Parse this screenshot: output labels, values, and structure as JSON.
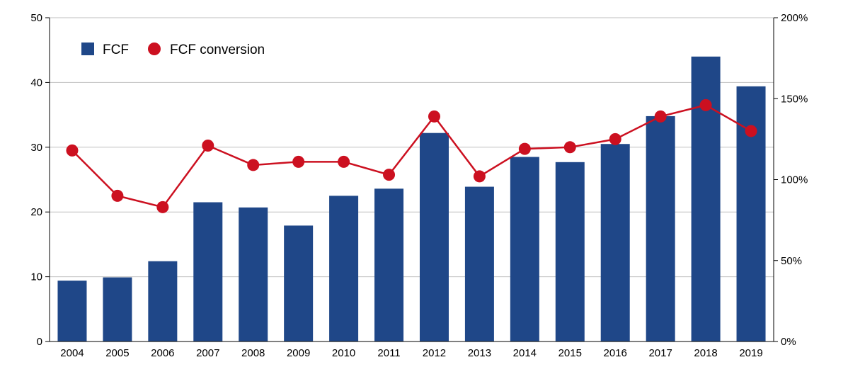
{
  "chart_data": {
    "type": "bar",
    "categories": [
      "2004",
      "2005",
      "2006",
      "2007",
      "2008",
      "2009",
      "2010",
      "2011",
      "2012",
      "2013",
      "2014",
      "2015",
      "2016",
      "2017",
      "2018",
      "2019"
    ],
    "series": [
      {
        "name": "FCF",
        "type": "bar",
        "axis": "left",
        "color": "#1f4788",
        "values": [
          9.4,
          9.9,
          12.4,
          21.5,
          20.7,
          17.9,
          22.5,
          23.6,
          32.2,
          23.9,
          28.5,
          27.7,
          30.5,
          34.8,
          44.0,
          39.4
        ]
      },
      {
        "name": "FCF conversion",
        "type": "line",
        "axis": "right",
        "color": "#cc1020",
        "values": [
          118,
          90,
          83,
          121,
          109,
          111,
          111,
          103,
          139,
          102,
          119,
          120,
          125,
          139,
          146,
          130
        ]
      }
    ],
    "y_left": {
      "min": 0,
      "max": 50,
      "ticks": [
        "0",
        "10",
        "20",
        "30",
        "40",
        "50"
      ]
    },
    "y_right": {
      "min": 0,
      "max": 200,
      "ticks": [
        "0%",
        "50%",
        "100%",
        "150%",
        "200%"
      ]
    },
    "grid": true,
    "legend_position": "top-left"
  }
}
